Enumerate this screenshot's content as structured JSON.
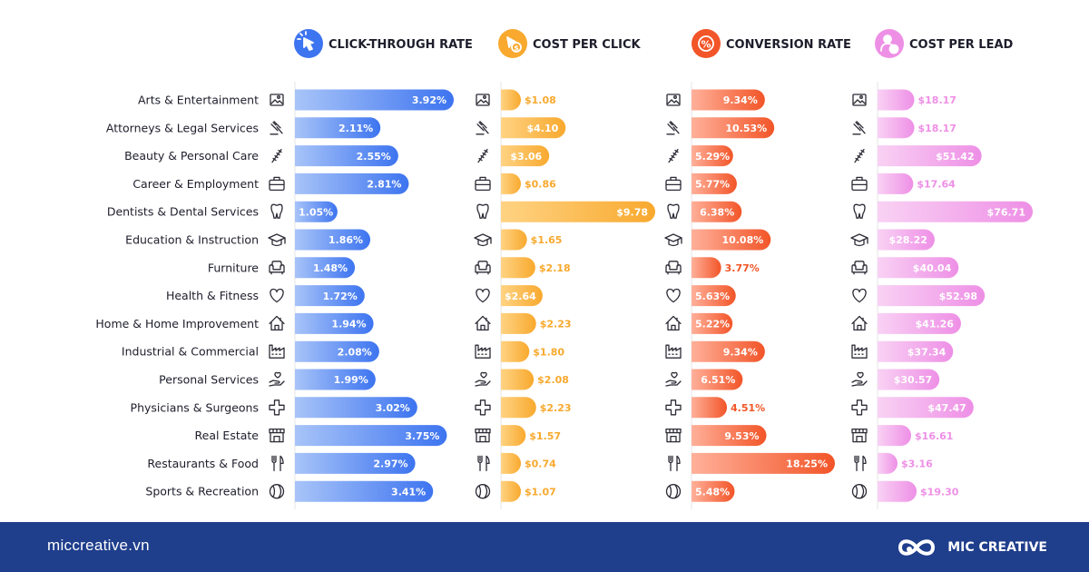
{
  "chart_data": {
    "type": "bar",
    "orientation": "horizontal",
    "grid": false,
    "categories": [
      "Arts & Entertainment",
      "Attorneys & Legal Services",
      "Beauty & Personal Care",
      "Career & Employment",
      "Dentists & Dental Services",
      "Education & Instruction",
      "Furniture",
      "Health & Fitness",
      "Home & Home Improvement",
      "Industrial & Commercial",
      "Personal Services",
      "Physicians & Surgeons",
      "Real Estate",
      "Restaurants & Food",
      "Sports & Recreation"
    ],
    "category_icons": [
      "picture-icon",
      "gavel-icon",
      "comb-icon",
      "briefcase-icon",
      "tooth-icon",
      "graduation-cap-icon",
      "armchair-icon",
      "heart-icon",
      "house-icon",
      "factory-icon",
      "helping-hand-icon",
      "medical-cross-icon",
      "storefront-icon",
      "fork-knife-icon",
      "ball-icon"
    ],
    "series": [
      {
        "name": "CLICK-THROUGH RATE",
        "icon": "cursor-click-icon",
        "unit": "%",
        "values": [
          3.92,
          2.11,
          2.55,
          2.81,
          1.05,
          1.86,
          1.48,
          1.72,
          1.94,
          2.08,
          1.99,
          3.02,
          3.75,
          2.97,
          3.41
        ],
        "labels": [
          "3.92%",
          "2.11%",
          "2.55%",
          "2.81%",
          "1.05%",
          "1.86%",
          "1.48%",
          "1.72%",
          "1.94%",
          "2.08%",
          "1.99%",
          "3.02%",
          "3.75%",
          "2.97%",
          "3.41%"
        ],
        "color_start": "#a8c4f8",
        "color_end": "#3d74f0"
      },
      {
        "name": "COST PER CLICK",
        "icon": "dollar-cursor-icon",
        "unit": "$",
        "values": [
          1.08,
          4.1,
          3.06,
          0.86,
          9.78,
          1.65,
          2.18,
          2.64,
          2.23,
          1.8,
          2.08,
          2.23,
          1.57,
          0.74,
          1.07
        ],
        "labels": [
          "$1.08",
          "$4.10",
          "$3.06",
          "$0.86",
          "$9.78",
          "$1.65",
          "$2.18",
          "$2.64",
          "$2.23",
          "$1.80",
          "$2.08",
          "$2.23",
          "$1.57",
          "$0.74",
          "$1.07"
        ],
        "color_start": "#ffd383",
        "color_end": "#f8a92e"
      },
      {
        "name": "CONVERSION RATE",
        "icon": "percent-icon",
        "unit": "%",
        "values": [
          9.34,
          10.53,
          5.29,
          5.77,
          6.38,
          10.08,
          3.77,
          5.63,
          5.22,
          9.34,
          6.51,
          4.51,
          9.53,
          18.25,
          5.48
        ],
        "labels": [
          "9.34%",
          "10.53%",
          "5.29%",
          "5.77%",
          "6.38%",
          "10.08%",
          "3.77%",
          "5.63%",
          "5.22%",
          "9.34%",
          "6.51%",
          "4.51%",
          "9.53%",
          "18.25%",
          "5.48%"
        ],
        "color_start": "#ffb09a",
        "color_end": "#f25528"
      },
      {
        "name": "COST PER LEAD",
        "icon": "person-dollar-icon",
        "unit": "$",
        "values": [
          18.17,
          18.17,
          51.42,
          17.64,
          76.71,
          28.22,
          40.04,
          52.98,
          41.26,
          37.34,
          30.57,
          47.47,
          16.61,
          3.16,
          19.3
        ],
        "labels": [
          "$18.17",
          "$18.17",
          "$51.42",
          "$17.64",
          "$76.71",
          "$28.22",
          "$40.04",
          "$52.98",
          "$41.26",
          "$37.34",
          "$30.57",
          "$47.47",
          "$16.61",
          "$3.16",
          "$19.30"
        ],
        "color_start": "#f9d2f4",
        "color_end": "#ee8fe6"
      }
    ]
  },
  "footer": {
    "url": "miccreative.vn",
    "brand": "MIC CREATIVE",
    "background": "#1f3e8c"
  }
}
